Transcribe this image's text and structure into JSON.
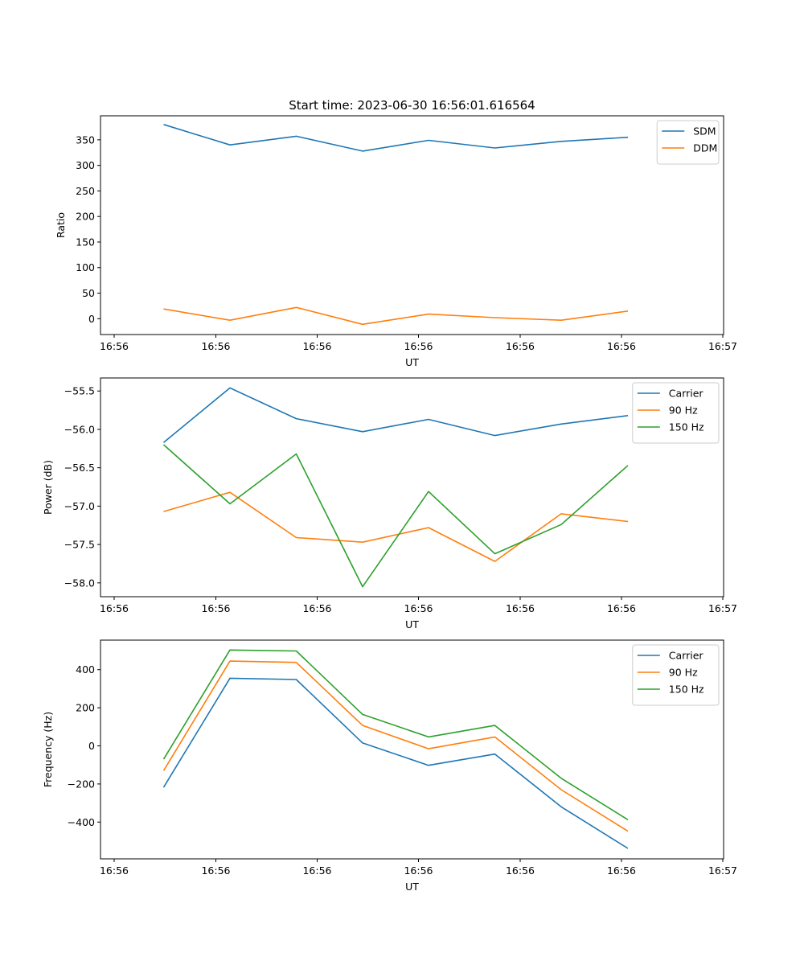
{
  "figure": {
    "title": "Start time: 2023-06-30 16:56:01.616564"
  },
  "chart_data": [
    {
      "type": "line",
      "xlabel": "UT",
      "ylabel": "Ratio",
      "xticks": [
        "16:56",
        "16:56",
        "16:56",
        "16:56",
        "16:56",
        "16:56",
        "16:57"
      ],
      "yticks": [
        0,
        50,
        100,
        150,
        200,
        250,
        300,
        350
      ],
      "ylim": [
        -31,
        397
      ],
      "legend": "upper-right",
      "grid": false,
      "series": [
        {
          "name": "SDM",
          "color": "#1f77b4",
          "values": [
            380,
            340,
            357,
            328,
            349,
            334,
            347,
            355
          ]
        },
        {
          "name": "DDM",
          "color": "#ff7f0e",
          "values": [
            19,
            -3,
            22,
            -11,
            9,
            2,
            -3,
            15
          ]
        }
      ]
    },
    {
      "type": "line",
      "xlabel": "UT",
      "ylabel": "Power (dB)",
      "xticks": [
        "16:56",
        "16:56",
        "16:56",
        "16:56",
        "16:56",
        "16:56",
        "16:57"
      ],
      "yticks": [
        -58.0,
        -57.5,
        -57.0,
        -56.5,
        -56.0,
        -55.5
      ],
      "ylim": [
        -58.18,
        -55.33
      ],
      "legend": "upper-right",
      "grid": false,
      "series": [
        {
          "name": "Carrier",
          "color": "#1f77b4",
          "values": [
            -56.17,
            -55.46,
            -55.86,
            -56.03,
            -55.87,
            -56.08,
            -55.93,
            -55.82
          ]
        },
        {
          "name": "90 Hz",
          "color": "#ff7f0e",
          "values": [
            -57.07,
            -56.82,
            -57.41,
            -57.47,
            -57.28,
            -57.72,
            -57.1,
            -57.2
          ]
        },
        {
          "name": "150 Hz",
          "color": "#2ca02c",
          "values": [
            -56.2,
            -56.97,
            -56.32,
            -58.05,
            -56.81,
            -57.62,
            -57.24,
            -56.47
          ]
        }
      ]
    },
    {
      "type": "line",
      "xlabel": "UT",
      "ylabel": "Frequency (Hz)",
      "xticks": [
        "16:56",
        "16:56",
        "16:56",
        "16:56",
        "16:56",
        "16:56",
        "16:57"
      ],
      "yticks": [
        -400,
        -200,
        0,
        200,
        400
      ],
      "ylim": [
        -593,
        555
      ],
      "legend": "upper-right",
      "grid": false,
      "series": [
        {
          "name": "Carrier",
          "color": "#1f77b4",
          "values": [
            -218,
            355,
            348,
            15,
            -102,
            -43,
            -320,
            -538
          ]
        },
        {
          "name": "90 Hz",
          "color": "#ff7f0e",
          "values": [
            -130,
            445,
            438,
            107,
            -15,
            47,
            -230,
            -448
          ]
        },
        {
          "name": "150 Hz",
          "color": "#2ca02c",
          "values": [
            -70,
            503,
            498,
            165,
            47,
            107,
            -170,
            -388
          ]
        }
      ]
    }
  ]
}
